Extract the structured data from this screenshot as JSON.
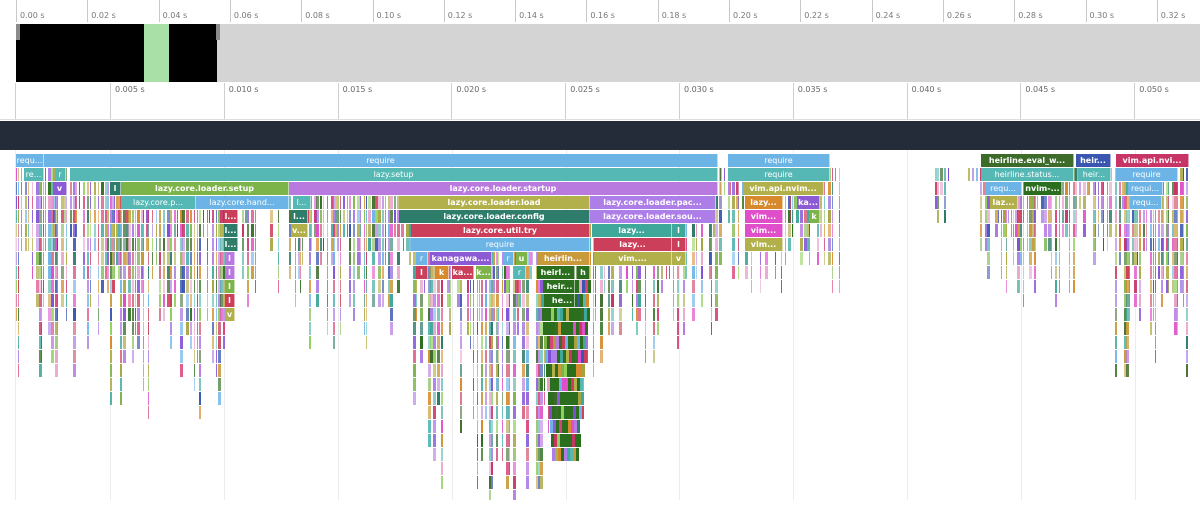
{
  "overview_ruler": {
    "ticks": [
      "0.00 s",
      "0.02 s",
      "0.04 s",
      "0.06 s",
      "0.08 s",
      "0.10 s",
      "0.12 s",
      "0.14 s",
      "0.16 s",
      "0.18 s",
      "0.20 s",
      "0.22 s",
      "0.24 s",
      "0.26 s",
      "0.28 s",
      "0.30 s",
      "0.32 s"
    ]
  },
  "detail_ruler": {
    "ticks": [
      "0.005 s",
      "0.010 s",
      "0.015 s",
      "0.020 s",
      "0.025 s",
      "0.030 s",
      "0.035 s",
      "0.040 s",
      "0.045 s",
      "0.050 s"
    ]
  },
  "colors": {
    "require": "#6cb3e6",
    "setup": "#56b8b5",
    "loader_setup": "#7cb44a",
    "startup": "#b97ae0",
    "load": "#b2b04a",
    "config": "#2e7d6b",
    "try": "#cc3f5a",
    "source": "#ad7de8",
    "kanagawa": "#8c5ad4",
    "heirline": "#c99a3a",
    "dark_green": "#2b6e1e",
    "magenta": "#e04fc9",
    "pink": "#d9437a",
    "orange": "#d78a2c",
    "navy": "#3a56b0",
    "eval": "#3d6b2a",
    "vim_api": "#c73567",
    "olive": "#a6a23e",
    "teal": "#3fa89a",
    "violet": "#7d4fd6",
    "lime": "#8fcf5a",
    "rose": "#e7a0c8"
  },
  "flame": {
    "labeled": [
      {
        "label": "requ...",
        "row": 0,
        "start": 16,
        "end": 44,
        "color": "require"
      },
      {
        "label": "require",
        "row": 0,
        "start": 44,
        "end": 718,
        "color": "require"
      },
      {
        "label": "require",
        "row": 0,
        "start": 728,
        "end": 830,
        "color": "require"
      },
      {
        "label": "heirline.eval_w...",
        "row": 0,
        "start": 981,
        "end": 1074,
        "color": "eval"
      },
      {
        "label": "heir...",
        "row": 0,
        "start": 1076,
        "end": 1111,
        "color": "navy"
      },
      {
        "label": "vim.api.nvi...",
        "row": 0,
        "start": 1116,
        "end": 1189,
        "color": "vim_api"
      },
      {
        "label": "re...",
        "row": 1,
        "start": 24,
        "end": 44,
        "color": "setup"
      },
      {
        "label": "r",
        "row": 1,
        "start": 55,
        "end": 66,
        "color": "setup"
      },
      {
        "label": "lazy.setup",
        "row": 1,
        "start": 70,
        "end": 718,
        "color": "setup"
      },
      {
        "label": "require",
        "row": 1,
        "start": 728,
        "end": 830,
        "color": "setup"
      },
      {
        "label": "heirline.status...",
        "row": 1,
        "start": 981,
        "end": 1074,
        "color": "setup"
      },
      {
        "label": "heir...",
        "row": 1,
        "start": 1078,
        "end": 1111,
        "color": "setup"
      },
      {
        "label": "require",
        "row": 1,
        "start": 1116,
        "end": 1178,
        "color": "require"
      },
      {
        "label": "v",
        "row": 2,
        "start": 53,
        "end": 67,
        "color": "kanagawa"
      },
      {
        "label": "l",
        "row": 2,
        "start": 110,
        "end": 121,
        "color": "config"
      },
      {
        "label": "lazy.core.loader.setup",
        "row": 2,
        "start": 121,
        "end": 289,
        "color": "loader_setup"
      },
      {
        "label": "lazy.core.loader.startup",
        "row": 2,
        "start": 289,
        "end": 718,
        "color": "startup"
      },
      {
        "label": "vim.api.nvim...",
        "row": 2,
        "start": 743,
        "end": 824,
        "color": "load"
      },
      {
        "label": "requ...",
        "row": 2,
        "start": 985,
        "end": 1022,
        "color": "require"
      },
      {
        "label": "nvim-...",
        "row": 2,
        "start": 1024,
        "end": 1062,
        "color": "dark_green"
      },
      {
        "label": "requi...",
        "row": 2,
        "start": 1128,
        "end": 1163,
        "color": "require"
      },
      {
        "label": "lazy.core.p...",
        "row": 3,
        "start": 121,
        "end": 196,
        "color": "setup"
      },
      {
        "label": "lazy.core.hand...",
        "row": 3,
        "start": 196,
        "end": 289,
        "color": "require"
      },
      {
        "label": "l...",
        "row": 3,
        "start": 293,
        "end": 311,
        "color": "setup"
      },
      {
        "label": "lazy.core.loader.load",
        "row": 3,
        "start": 399,
        "end": 590,
        "color": "load"
      },
      {
        "label": "lazy.core.loader.pac...",
        "row": 3,
        "start": 590,
        "end": 716,
        "color": "source"
      },
      {
        "label": "lazy...",
        "row": 3,
        "start": 745,
        "end": 783,
        "color": "orange"
      },
      {
        "label": "ka...",
        "row": 3,
        "start": 797,
        "end": 820,
        "color": "kanagawa"
      },
      {
        "label": "laz...",
        "row": 3,
        "start": 990,
        "end": 1018,
        "color": "load"
      },
      {
        "label": "requ...",
        "row": 3,
        "start": 1130,
        "end": 1162,
        "color": "require"
      },
      {
        "label": "l...",
        "row": 4,
        "start": 224,
        "end": 238,
        "color": "try"
      },
      {
        "label": "l...",
        "row": 4,
        "start": 291,
        "end": 308,
        "color": "config"
      },
      {
        "label": "lazy.core.loader.config",
        "row": 4,
        "start": 399,
        "end": 590,
        "color": "config"
      },
      {
        "label": "lazy.core.loader.sou...",
        "row": 4,
        "start": 590,
        "end": 716,
        "color": "source"
      },
      {
        "label": "vim...",
        "row": 4,
        "start": 745,
        "end": 783,
        "color": "magenta"
      },
      {
        "label": "k",
        "row": 4,
        "start": 809,
        "end": 820,
        "color": "loader_setup"
      },
      {
        "label": "l...",
        "row": 5,
        "start": 224,
        "end": 238,
        "color": "config"
      },
      {
        "label": "v...",
        "row": 5,
        "start": 291,
        "end": 308,
        "color": "load"
      },
      {
        "label": "lazy.core.util.try",
        "row": 5,
        "start": 411,
        "end": 590,
        "color": "try"
      },
      {
        "label": "lazy...",
        "row": 5,
        "start": 592,
        "end": 672,
        "color": "teal"
      },
      {
        "label": "l",
        "row": 5,
        "start": 672,
        "end": 686,
        "color": "teal"
      },
      {
        "label": "vim...",
        "row": 5,
        "start": 745,
        "end": 783,
        "color": "magenta"
      },
      {
        "label": "l...",
        "row": 6,
        "start": 224,
        "end": 238,
        "color": "config"
      },
      {
        "label": "require",
        "row": 6,
        "start": 411,
        "end": 590,
        "color": "require"
      },
      {
        "label": "lazy...",
        "row": 6,
        "start": 594,
        "end": 672,
        "color": "try"
      },
      {
        "label": "l",
        "row": 6,
        "start": 672,
        "end": 686,
        "color": "try"
      },
      {
        "label": "vim...",
        "row": 6,
        "start": 745,
        "end": 783,
        "color": "load"
      },
      {
        "label": "r",
        "row": 7,
        "start": 416,
        "end": 428,
        "color": "require"
      },
      {
        "label": "kanagawa....",
        "row": 7,
        "start": 430,
        "end": 492,
        "color": "kanagawa"
      },
      {
        "label": "r",
        "row": 7,
        "start": 503,
        "end": 514,
        "color": "require"
      },
      {
        "label": "u",
        "row": 7,
        "start": 516,
        "end": 528,
        "color": "loader_setup"
      },
      {
        "label": "heirlin...",
        "row": 7,
        "start": 537,
        "end": 590,
        "color": "heirline"
      },
      {
        "label": "vim....",
        "row": 7,
        "start": 594,
        "end": 672,
        "color": "load"
      },
      {
        "label": "v",
        "row": 7,
        "start": 672,
        "end": 686,
        "color": "load"
      },
      {
        "label": "l",
        "row": 7,
        "start": 225,
        "end": 235,
        "color": "startup"
      },
      {
        "label": "l",
        "row": 8,
        "start": 416,
        "end": 428,
        "color": "try"
      },
      {
        "label": "k",
        "row": 8,
        "start": 435,
        "end": 449,
        "color": "orange"
      },
      {
        "label": "ka...",
        "row": 8,
        "start": 452,
        "end": 474,
        "color": "try"
      },
      {
        "label": "k...",
        "row": 8,
        "start": 476,
        "end": 492,
        "color": "loader_setup"
      },
      {
        "label": "r",
        "row": 8,
        "start": 514,
        "end": 526,
        "color": "setup"
      },
      {
        "label": "heirl...",
        "row": 8,
        "start": 537,
        "end": 575,
        "color": "dark_green"
      },
      {
        "label": "h",
        "row": 8,
        "start": 577,
        "end": 590,
        "color": "dark_green"
      },
      {
        "label": "l",
        "row": 8,
        "start": 225,
        "end": 235,
        "color": "startup"
      },
      {
        "label": "heir...",
        "row": 9,
        "start": 545,
        "end": 575,
        "color": "dark_green"
      },
      {
        "label": "l",
        "row": 9,
        "start": 225,
        "end": 235,
        "color": "loader_setup"
      },
      {
        "label": "he...",
        "row": 10,
        "start": 550,
        "end": 575,
        "color": "dark_green"
      },
      {
        "label": "l",
        "row": 10,
        "start": 225,
        "end": 235,
        "color": "try"
      },
      {
        "label": "v",
        "row": 11,
        "start": 225,
        "end": 235,
        "color": "load"
      }
    ]
  }
}
